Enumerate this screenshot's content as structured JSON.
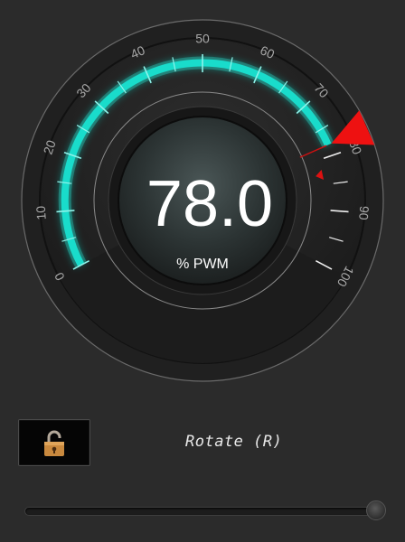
{
  "gauge": {
    "value": "78.0",
    "value_numeric": 78,
    "unit": "% PWM",
    "min": 0,
    "max": 100,
    "tick_labels": [
      "0",
      "10",
      "20",
      "30",
      "40",
      "50",
      "60",
      "70",
      "80",
      "90",
      "100"
    ],
    "arc_color": "#19dccb",
    "pointer_color": "#ee1111"
  },
  "controls": {
    "lock_icon": "unlocked-padlock-icon",
    "rotate_label": "Rotate (R)",
    "slider_value_fraction": 0.96
  }
}
